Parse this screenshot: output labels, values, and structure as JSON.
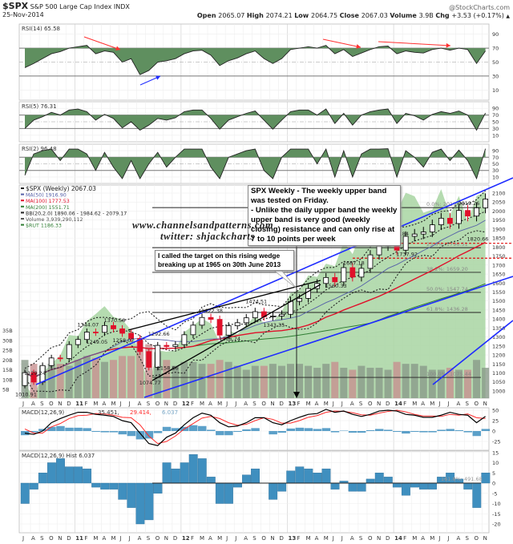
{
  "header": {
    "symbol": "$SPX",
    "name": "S&P 500 Large Cap Index INDX",
    "date": "25-Nov-2014",
    "watermark": "@StockCharts.com",
    "quote": [
      {
        "label": "Open",
        "value": "2065.07"
      },
      {
        "label": "High",
        "value": "2074.21"
      },
      {
        "label": "Low",
        "value": "2064.75"
      },
      {
        "label": "Close",
        "value": "2067.03"
      },
      {
        "label": "Volume",
        "value": "3.9B"
      },
      {
        "label": "Chg",
        "value": "+3.53 (+0.17%)"
      }
    ],
    "change_icon": "up-triangle-icon"
  },
  "annotations": {
    "note1_line1": "SPX Weekly - The weekly upper band was tested on Friday.",
    "note1_line2": "- Unlike the daily upper band the weekly upper band is very good (weekly closing) resistance and can only rise at 7 to 10 points per week",
    "site": "www.channelsandpatterns.com",
    "twitter": "twitter: shjackcharts",
    "note2_line1": "I called the target on this rising wedge",
    "note2_line2": "breaking up at 1965 on 30th June 2013"
  },
  "colors": {
    "up": "#000000",
    "down": "#e0102a",
    "ma50": "#5560a8",
    "ma100": "#e0102a",
    "ma200": "#2e7d32",
    "rut_area": "#a8d5a2",
    "macd": "#000000",
    "signal": "#ff2a2a",
    "hist": "#3f8fbf",
    "rsi_fill_hi": "#5f8f5f",
    "rsi_fill_lo": "#a56060",
    "channel": "#1f2cff"
  },
  "chart_data": [
    {
      "type": "line",
      "title": "RSI(14) 65.58",
      "ticks": [
        90,
        70,
        50,
        30,
        10
      ],
      "ylim": [
        0,
        100
      ],
      "values": [
        42,
        48,
        55,
        62,
        65,
        70,
        72,
        74,
        62,
        66,
        64,
        50,
        55,
        32,
        38,
        50,
        52,
        55,
        62,
        66,
        67,
        60,
        45,
        52,
        56,
        62,
        66,
        55,
        48,
        55,
        68,
        70,
        72,
        70,
        74,
        62,
        68,
        58,
        63,
        68,
        72,
        73,
        62,
        66,
        64,
        63,
        68,
        70,
        67,
        70,
        68,
        48,
        66
      ]
    },
    {
      "type": "line",
      "title": "RSI(5) 76.31",
      "ticks": [
        90,
        70,
        50,
        30,
        10
      ],
      "ylim": [
        0,
        100
      ],
      "values": [
        30,
        55,
        65,
        78,
        70,
        85,
        88,
        80,
        55,
        72,
        60,
        32,
        50,
        25,
        40,
        60,
        55,
        62,
        80,
        85,
        85,
        60,
        28,
        55,
        65,
        75,
        82,
        55,
        28,
        55,
        80,
        85,
        85,
        70,
        88,
        45,
        75,
        40,
        70,
        80,
        85,
        88,
        45,
        75,
        68,
        55,
        72,
        80,
        75,
        82,
        70,
        25,
        76
      ]
    },
    {
      "type": "line",
      "title": "RSI(2) 96.48",
      "ticks": [
        90,
        70,
        50,
        30,
        10
      ],
      "ylim": [
        0,
        100
      ],
      "values": [
        15,
        80,
        90,
        95,
        60,
        95,
        95,
        80,
        30,
        85,
        40,
        5,
        60,
        5,
        50,
        85,
        40,
        70,
        95,
        95,
        95,
        40,
        5,
        70,
        80,
        90,
        95,
        30,
        5,
        70,
        95,
        95,
        95,
        50,
        95,
        10,
        90,
        10,
        80,
        95,
        95,
        96,
        10,
        90,
        70,
        40,
        85,
        95,
        60,
        92,
        60,
        5,
        96
      ]
    },
    {
      "type": "candlestick",
      "title": "$SPX (Weekly) 2067.03",
      "legend": [
        "MA(50) 1916.90",
        "MA(100) 1777.53",
        "MA(200) 1551.71",
        "BB(20,2.0) 1890.06 - 1984.62 - 2079.17",
        "Volume 3,939,290,112",
        "$RUT 1186.33"
      ],
      "ticks": [
        2100,
        2050,
        2000,
        1950,
        1900,
        1850,
        1800,
        1750,
        1700,
        1650,
        1600,
        1550,
        1500,
        1450,
        1400,
        1350,
        1300,
        1250,
        1200,
        1150,
        1100,
        1050,
        1000
      ],
      "ylim": [
        1000,
        2100
      ],
      "volume_ticks": [
        "35B",
        "30B",
        "25B",
        "20B",
        "15B",
        "10B",
        "5B"
      ],
      "close": [
        1101.6,
        1049.3,
        1141.2,
        1183.3,
        1180.6,
        1257.6,
        1286.1,
        1327.2,
        1325.8,
        1363.6,
        1345.2,
        1320.6,
        1292.3,
        1218.9,
        1131.4,
        1253.3,
        1247.0,
        1257.6,
        1312.4,
        1365.7,
        1408.5,
        1397.9,
        1310.3,
        1362.2,
        1379.3,
        1406.6,
        1440.7,
        1412.2,
        1416.2,
        1426.2,
        1498.1,
        1514.7,
        1569.2,
        1597.6,
        1630.7,
        1606.3,
        1685.7,
        1633.0,
        1681.6,
        1756.5,
        1805.8,
        1848.4,
        1782.6,
        1859.5,
        1872.3,
        1883.9,
        1923.6,
        1960.2,
        1930.7,
        2003.4,
        1972.3,
        2018.1,
        2067.0
      ],
      "volume_billions": [
        20,
        18,
        17,
        18,
        18,
        17,
        20,
        22,
        21,
        19,
        20,
        22,
        22,
        30,
        28,
        24,
        20,
        17,
        19,
        19,
        18,
        18,
        20,
        19,
        17,
        15,
        17,
        17,
        18,
        17,
        18,
        18,
        17,
        16,
        18,
        19,
        16,
        15,
        17,
        16,
        16,
        15,
        19,
        18,
        18,
        17,
        15,
        15,
        16,
        15,
        15,
        20,
        16
      ],
      "rut": [
        650,
        602,
        676,
        703,
        727,
        784,
        781,
        823,
        843,
        865,
        835,
        827,
        797,
        726,
        644,
        741,
        737,
        741,
        792,
        810,
        830,
        816,
        762,
        798,
        786,
        812,
        837,
        818,
        822,
        849,
        902,
        911,
        951,
        947,
        984,
        977,
        1045,
        1011,
        1074,
        1100,
        1143,
        1163,
        1130,
        1183,
        1173,
        1127,
        1135,
        1193,
        1120,
        1174,
        1102,
        1174,
        1186
      ],
      "point_labels": [
        {
          "month": 0,
          "price": 1010.91,
          "text": "1010.91"
        },
        {
          "month": 1,
          "price": 1129.24,
          "text": "1129.24"
        },
        {
          "month": 7,
          "price": 1344.07,
          "text": "1344.07"
        },
        {
          "month": 8,
          "price": 1249.05,
          "text": "1249.05"
        },
        {
          "month": 10,
          "price": 1370.58,
          "text": "1370.58"
        },
        {
          "month": 11,
          "price": 1258.07,
          "text": "1258.07"
        },
        {
          "month": 15,
          "price": 1292.66,
          "text": "1292.66"
        },
        {
          "month": 14,
          "price": 1074.77,
          "text": "1074.77"
        },
        {
          "month": 16,
          "price": 1158.66,
          "text": "1158.66"
        },
        {
          "month": 21,
          "price": 1422.38,
          "text": "1422.38"
        },
        {
          "month": 23,
          "price": 1266.74,
          "text": "1266.74"
        },
        {
          "month": 26,
          "price": 1474.51,
          "text": "1474.51"
        },
        {
          "month": 28,
          "price": 1343.35,
          "text": "1343.35"
        },
        {
          "month": 35,
          "price": 1560.33,
          "text": "1560.33"
        },
        {
          "month": 37,
          "price": 1687.18,
          "text": "1687.18"
        },
        {
          "month": 42,
          "price": 1850.84,
          "text": "1850.84"
        },
        {
          "month": 43,
          "price": 1737.92,
          "text": "1737.92"
        },
        {
          "month": 50,
          "price": 2019.26,
          "text": "2019.26"
        },
        {
          "month": 51,
          "price": 1820.66,
          "text": "1820.66"
        }
      ],
      "fib_levels": [
        {
          "price": 2019.26,
          "text": "0.0%: 2019.26"
        },
        {
          "price": 1796.51,
          "text": "23.6%: 1796.51"
        },
        {
          "price": 1659.2,
          "text": "38.2%: 1659.20"
        },
        {
          "price": 1547.74,
          "text": "50.0%: 1547.74"
        },
        {
          "price": 1436.28,
          "text": "61.8%: 1436.28"
        },
        {
          "price": 1075.44,
          "text": "100.0%: 1075.44"
        }
      ],
      "red_dashed_levels": [
        1820.66,
        1737.92
      ]
    },
    {
      "type": "line",
      "title": "MACD(12,26,9)",
      "legend": [
        "35.451",
        "29.414",
        "6.037"
      ],
      "ticks": [
        50,
        25,
        0,
        -25
      ],
      "ylim": [
        -35,
        58
      ],
      "macd": [
        -5,
        -8,
        0,
        20,
        30,
        38,
        45,
        45,
        40,
        38,
        35,
        25,
        20,
        -5,
        -30,
        -35,
        -15,
        -5,
        15,
        32,
        43,
        38,
        20,
        10,
        12,
        20,
        32,
        32,
        20,
        15,
        25,
        33,
        40,
        42,
        52,
        45,
        48,
        40,
        35,
        40,
        48,
        50,
        48,
        40,
        38,
        33,
        33,
        38,
        45,
        40,
        38,
        20,
        35
      ]
    },
    {
      "type": "bar",
      "title": "MACD(12,26,9) Hist 6.037",
      "annotation": "161.8%: 491.68",
      "ticks": [
        15,
        10,
        5,
        0,
        -5,
        -10,
        -15,
        -20
      ],
      "ylim": [
        -23,
        16
      ],
      "values": [
        -10,
        -3,
        5,
        10,
        12,
        8,
        8,
        7,
        -2,
        -3,
        -3,
        -8,
        -12,
        -20,
        -18,
        -5,
        10,
        7,
        10,
        14,
        12,
        3,
        -10,
        -10,
        -2,
        4,
        7,
        0,
        -8,
        -4,
        6,
        8,
        7,
        5,
        7,
        -3,
        1,
        -4,
        -4,
        2,
        5,
        3,
        -2,
        -6,
        -2,
        -3,
        -3,
        3,
        5,
        2,
        -3,
        -12,
        5
      ]
    }
  ],
  "x_axis": {
    "months": [
      "J",
      "A",
      "S",
      "O",
      "N",
      "D",
      "11",
      "F",
      "M",
      "A",
      "M",
      "J",
      "J",
      "A",
      "S",
      "O",
      "N",
      "D",
      "12",
      "F",
      "M",
      "A",
      "M",
      "J",
      "J",
      "A",
      "S",
      "O",
      "N",
      "D",
      "13",
      "F",
      "M",
      "A",
      "M",
      "J",
      "J",
      "A",
      "S",
      "O",
      "N",
      "D",
      "14",
      "F",
      "M",
      "A",
      "M",
      "J",
      "J",
      "A",
      "S",
      "O",
      "N"
    ]
  }
}
